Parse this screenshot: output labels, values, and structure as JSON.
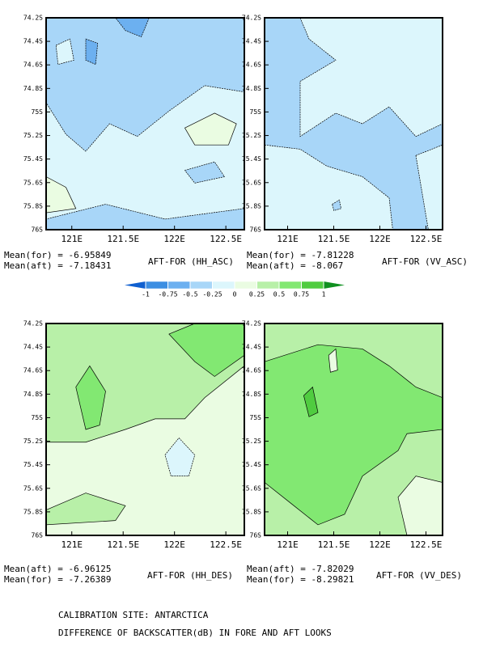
{
  "chart_data": [
    {
      "type": "contour",
      "title": "AFT-FOR (HH_ASC)",
      "mean_lines": [
        "Mean(for) = -6.95849",
        "Mean(aft) = -7.18431"
      ],
      "xlim": [
        120.75,
        122.68
      ],
      "ylim": [
        74.2,
        76
      ],
      "xticks": [
        {
          "value": 121,
          "label": "121E"
        },
        {
          "value": 121.5,
          "label": "121.5E"
        },
        {
          "value": 122,
          "label": "122E"
        },
        {
          "value": 122.5,
          "label": "122.5E"
        }
      ],
      "yticks": [
        {
          "value": 74.2,
          "label": "74.2S"
        },
        {
          "value": 74.4,
          "label": "74.4S"
        },
        {
          "value": 74.6,
          "label": "74.6S"
        },
        {
          "value": 74.8,
          "label": "74.8S"
        },
        {
          "value": 75,
          "label": "75S"
        },
        {
          "value": 75.2,
          "label": "75.2S"
        },
        {
          "value": 75.4,
          "label": "75.4S"
        },
        {
          "value": 75.6,
          "label": "75.6S"
        },
        {
          "value": 75.8,
          "label": "75.8S"
        },
        {
          "value": 76,
          "label": "76S"
        }
      ]
    },
    {
      "type": "contour",
      "title": "AFT-FOR (VV_ASC)",
      "mean_lines": [
        "Mean(for) = -7.81228",
        "Mean(aft) = -8.067"
      ],
      "xlim": [
        120.75,
        122.68
      ],
      "ylim": [
        74.2,
        76
      ],
      "xticks": [
        {
          "value": 121,
          "label": "121E"
        },
        {
          "value": 121.5,
          "label": "121.5E"
        },
        {
          "value": 122,
          "label": "122E"
        },
        {
          "value": 122.5,
          "label": "122.5E"
        }
      ],
      "yticks": [
        {
          "value": 74.2,
          "label": "74.2S"
        },
        {
          "value": 74.4,
          "label": "74.4S"
        },
        {
          "value": 74.6,
          "label": "74.6S"
        },
        {
          "value": 74.8,
          "label": "74.8S"
        },
        {
          "value": 75,
          "label": "75S"
        },
        {
          "value": 75.2,
          "label": "75.2S"
        },
        {
          "value": 75.4,
          "label": "75.4S"
        },
        {
          "value": 75.6,
          "label": "75.6S"
        },
        {
          "value": 75.8,
          "label": "75.8S"
        },
        {
          "value": 76,
          "label": "76S"
        }
      ]
    },
    {
      "type": "contour",
      "title": "AFT-FOR (HH_DES)",
      "mean_lines": [
        "Mean(aft) = -6.96125",
        "Mean(for) = -7.26389"
      ],
      "xlim": [
        120.75,
        122.68
      ],
      "ylim": [
        74.2,
        76
      ],
      "xticks": [
        {
          "value": 121,
          "label": "121E"
        },
        {
          "value": 121.5,
          "label": "121.5E"
        },
        {
          "value": 122,
          "label": "122E"
        },
        {
          "value": 122.5,
          "label": "122.5E"
        }
      ],
      "yticks": [
        {
          "value": 74.2,
          "label": "74.2S"
        },
        {
          "value": 74.4,
          "label": "74.4S"
        },
        {
          "value": 74.6,
          "label": "74.6S"
        },
        {
          "value": 74.8,
          "label": "74.8S"
        },
        {
          "value": 75,
          "label": "75S"
        },
        {
          "value": 75.2,
          "label": "75.2S"
        },
        {
          "value": 75.4,
          "label": "75.4S"
        },
        {
          "value": 75.6,
          "label": "75.6S"
        },
        {
          "value": 75.8,
          "label": "75.8S"
        },
        {
          "value": 76,
          "label": "76S"
        }
      ]
    },
    {
      "type": "contour",
      "title": "AFT-FOR (VV_DES)",
      "mean_lines": [
        "Mean(aft) = -7.82029",
        "Mean(for) = -8.29821"
      ],
      "xlim": [
        120.75,
        122.68
      ],
      "ylim": [
        74.2,
        76
      ],
      "xticks": [
        {
          "value": 121,
          "label": "121E"
        },
        {
          "value": 121.5,
          "label": "121.5E"
        },
        {
          "value": 122,
          "label": "122E"
        },
        {
          "value": 122.5,
          "label": "122.5E"
        }
      ],
      "yticks": [
        {
          "value": 74.2,
          "label": "74.2S"
        },
        {
          "value": 74.4,
          "label": "74.4S"
        },
        {
          "value": 74.6,
          "label": "74.6S"
        },
        {
          "value": 74.8,
          "label": "74.8S"
        },
        {
          "value": 75,
          "label": "75S"
        },
        {
          "value": 75.2,
          "label": "75.2S"
        },
        {
          "value": 75.4,
          "label": "75.4S"
        },
        {
          "value": 75.6,
          "label": "75.6S"
        },
        {
          "value": 75.8,
          "label": "75.8S"
        },
        {
          "value": 76,
          "label": "76S"
        }
      ]
    }
  ],
  "colorbar": {
    "levels": [
      -1,
      -0.75,
      -0.5,
      -0.25,
      0,
      0.25,
      0.5,
      0.75,
      1
    ],
    "colors": [
      "#3c8ee2",
      "#6cb0f0",
      "#a8d6f8",
      "#dcf6fc",
      "#eafce2",
      "#b8f0a8",
      "#82e872",
      "#50cc40"
    ]
  },
  "footer": [
    "CALIBRATION SITE: ANTARCTICA",
    "DIFFERENCE OF BACKSCATTER(dB) IN FORE AND AFT LOOKS"
  ]
}
